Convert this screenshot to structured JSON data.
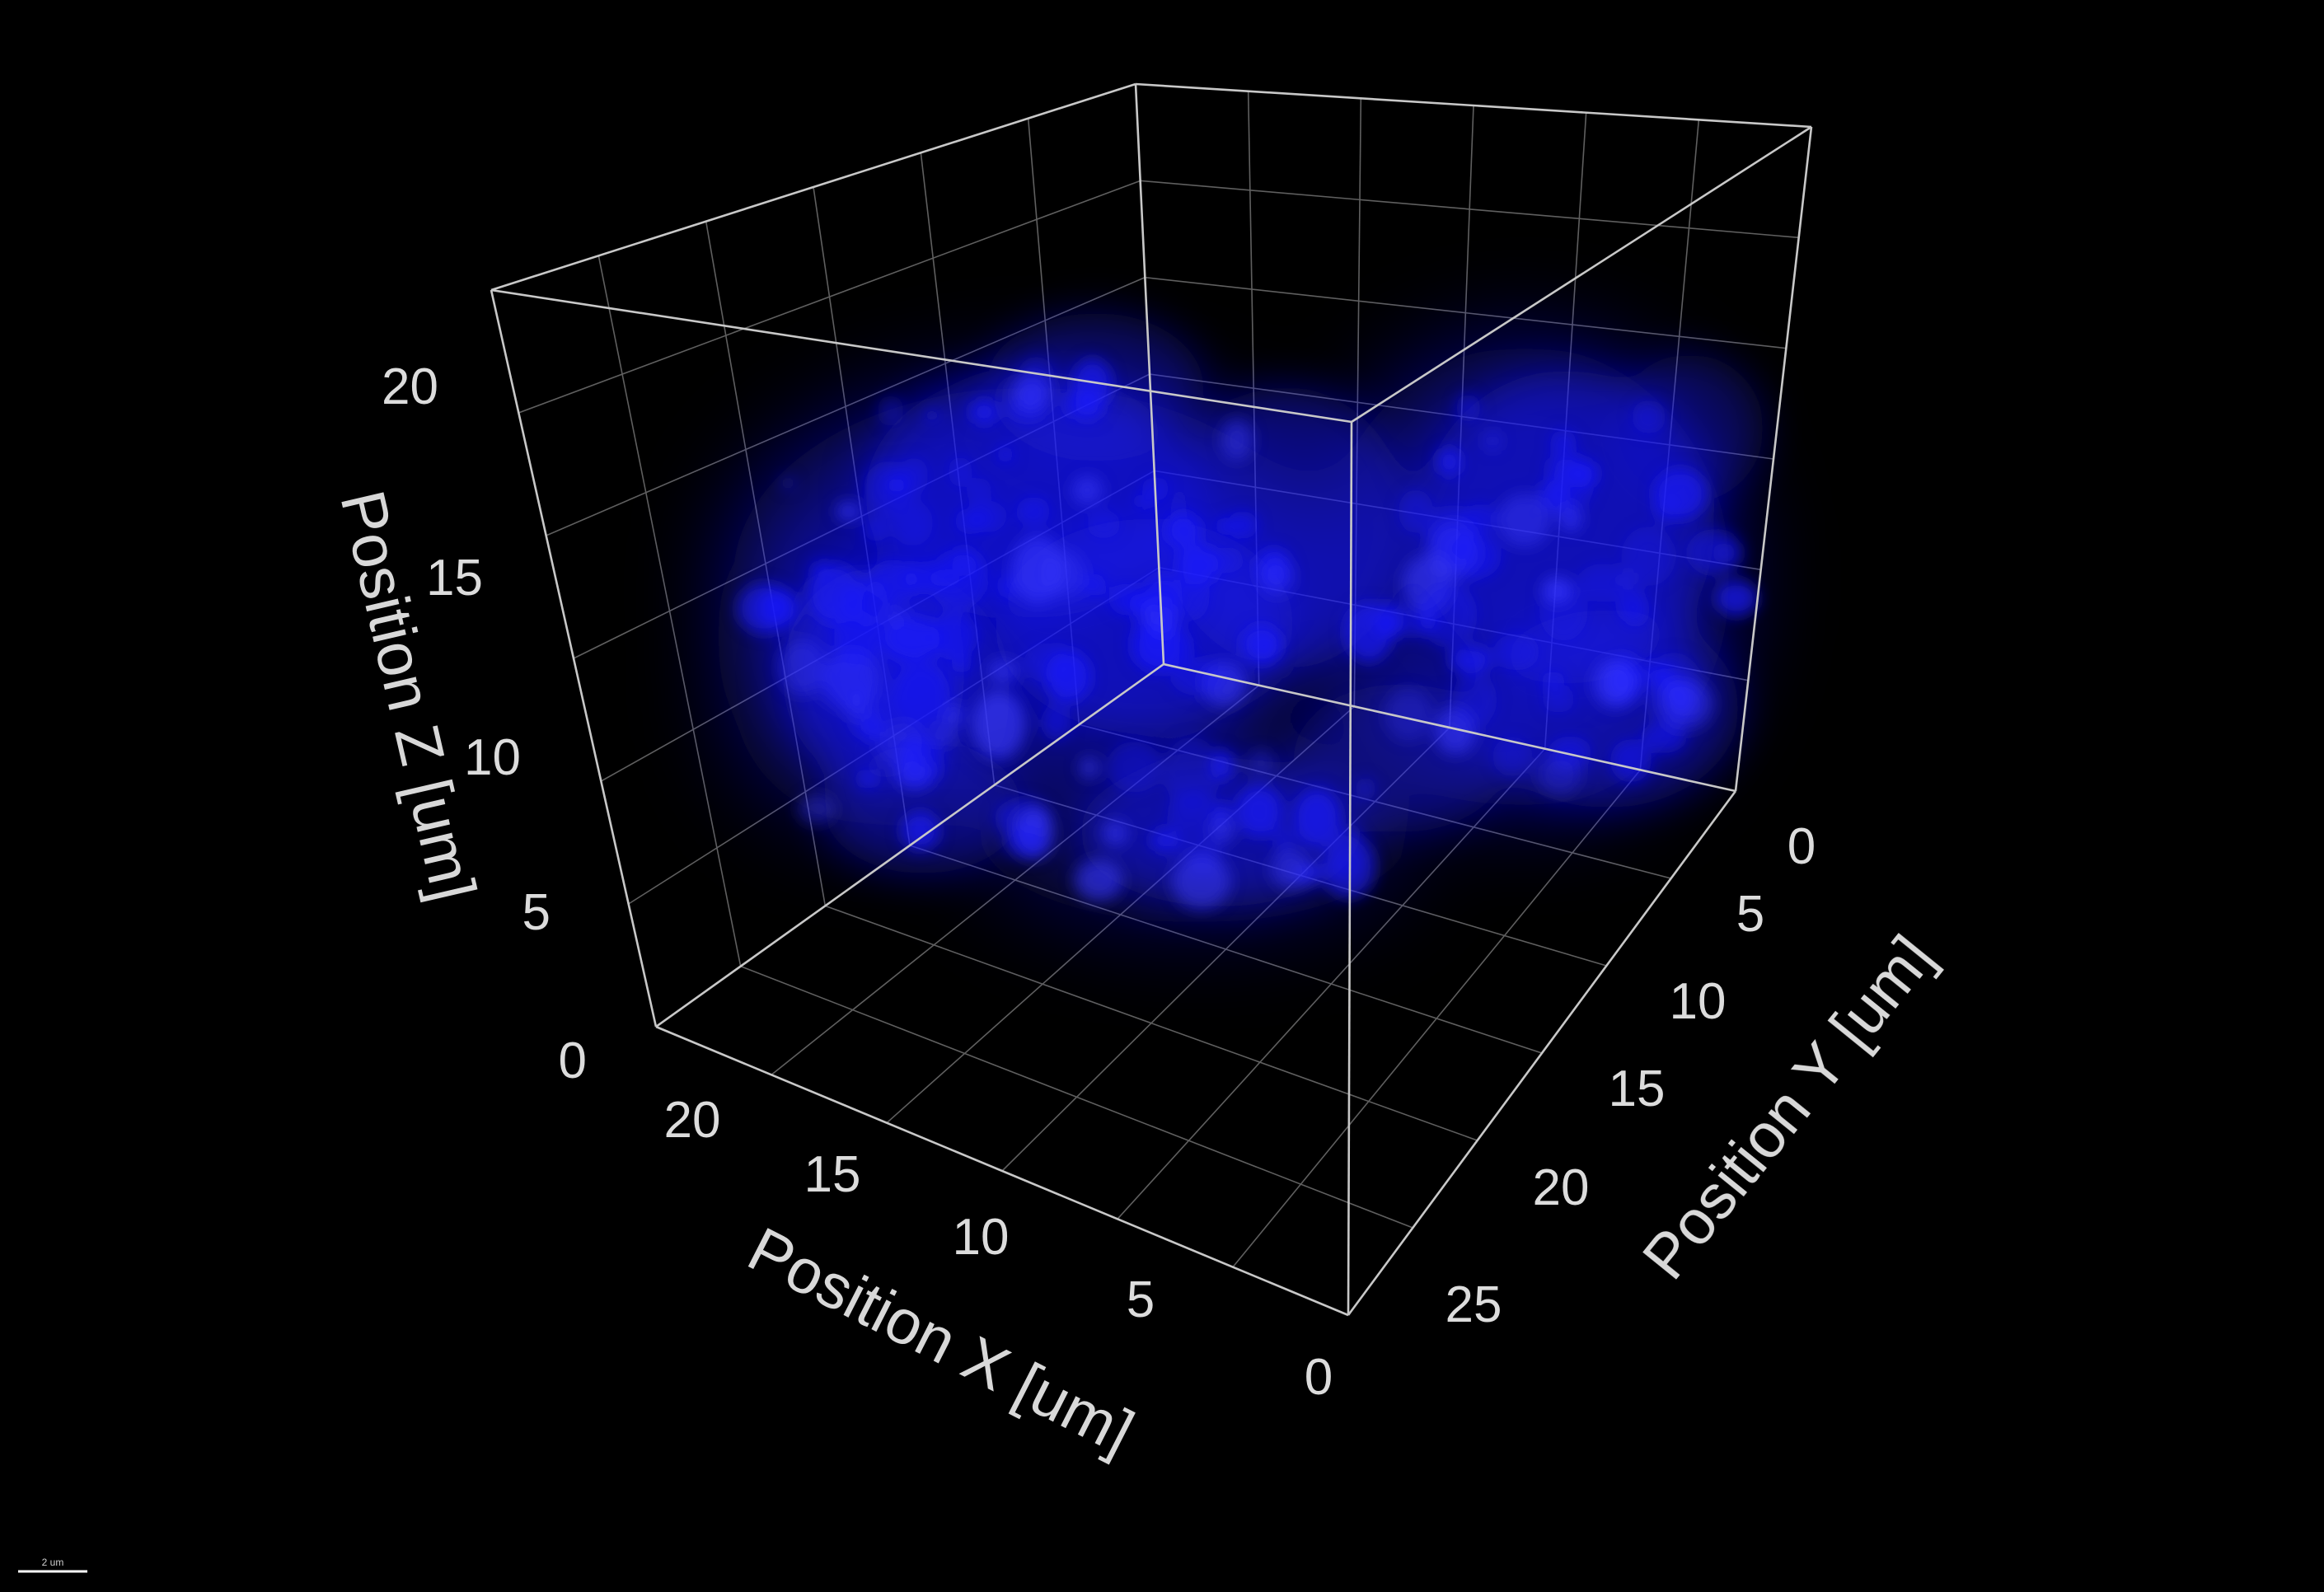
{
  "viewer": {
    "background_color": "#000000",
    "channel_color": "#1a1aff",
    "box_color": "#c8c8c8",
    "grid_color": "#8a8a8a",
    "text_color": "#dcdcdc"
  },
  "axes": {
    "x": {
      "title": "Position X [um]",
      "ticks": [
        "0",
        "5",
        "10",
        "15",
        "20"
      ]
    },
    "y": {
      "title": "Position Y [um]",
      "ticks": [
        "0",
        "5",
        "10",
        "15",
        "20",
        "25"
      ]
    },
    "z": {
      "title": "Position Z [um]",
      "ticks": [
        "0",
        "5",
        "10",
        "15",
        "20"
      ]
    }
  },
  "scale_bar": {
    "label": "2 um"
  }
}
